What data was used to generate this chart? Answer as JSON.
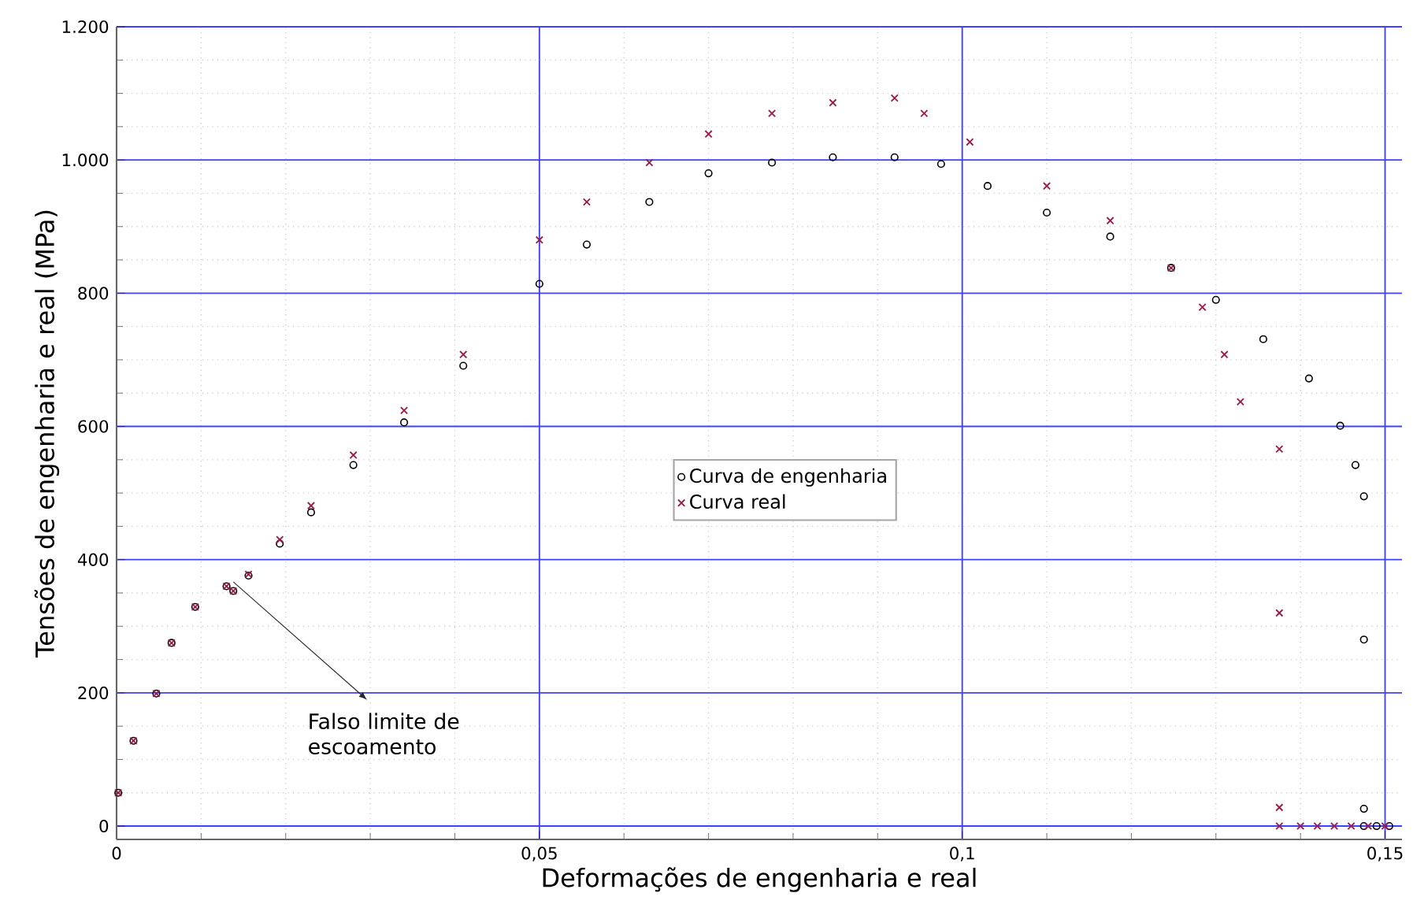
{
  "chart_data": {
    "type": "scatter",
    "xlabel": "Deformações de engenharia e real",
    "ylabel": "Tensões de engenharia e real (MPa)",
    "xlim": [
      0,
      0.152
    ],
    "ylim": [
      -20,
      1200
    ],
    "xticks": [
      0,
      {
        "value": 0.05,
        "label": "0,05"
      },
      {
        "value": 0.1,
        "label": "0,1"
      },
      {
        "value": 0.15,
        "label": "0,15"
      }
    ],
    "yticks": [
      0,
      200,
      400,
      600,
      800,
      {
        "value": 1000,
        "label": "1.000"
      },
      {
        "value": 1200,
        "label": "1.200"
      }
    ],
    "grid": true,
    "legend": "center",
    "annotations": [
      {
        "text": "Falso limite de escoamento",
        "x": 0.0138,
        "y": 353
      }
    ],
    "series": [
      {
        "name": "Curva de engenharia",
        "color": "#000000",
        "marker": "circle",
        "x": [
          0.0002,
          0.002,
          0.0047,
          0.0065,
          0.0093,
          0.013,
          0.0138,
          0.0156,
          0.0193,
          0.023,
          0.028,
          0.034,
          0.041,
          0.05,
          0.0556,
          0.063,
          0.07,
          0.0775,
          0.0847,
          0.092,
          0.0975,
          0.103,
          0.11,
          0.1175,
          0.1247,
          0.13,
          0.1356,
          0.141,
          0.1447,
          0.1465,
          0.1475,
          0.1475,
          0.1475,
          0.1475,
          0.149,
          0.1505
        ],
        "values": [
          50,
          128,
          199,
          275,
          329,
          360,
          353,
          376,
          424,
          471,
          542,
          606,
          691,
          814,
          873,
          937,
          980,
          996,
          1004,
          1004,
          994,
          961,
          921,
          885,
          838,
          790,
          731,
          672,
          601,
          542,
          495,
          280,
          26,
          0,
          0,
          0
        ]
      },
      {
        "name": "Curva real",
        "color": "#9b1b4b",
        "marker": "cross",
        "x": [
          0.0002,
          0.002,
          0.0047,
          0.0065,
          0.0093,
          0.013,
          0.0138,
          0.0156,
          0.0193,
          0.023,
          0.028,
          0.034,
          0.041,
          0.05,
          0.0556,
          0.063,
          0.07,
          0.0775,
          0.0847,
          0.092,
          0.0955,
          0.1009,
          0.11,
          0.1175,
          0.1247,
          0.1284,
          0.131,
          0.1329,
          0.1375,
          0.1375,
          0.1375,
          0.1375,
          0.14,
          0.142,
          0.144,
          0.146,
          0.148,
          0.15
        ],
        "values": [
          50,
          128,
          199,
          275,
          329,
          360,
          353,
          378,
          430,
          481,
          557,
          624,
          708,
          880,
          937,
          996,
          1039,
          1070,
          1086,
          1093,
          1070,
          1027,
          961,
          909,
          838,
          779,
          708,
          637,
          566,
          320,
          28,
          0,
          0,
          0,
          0,
          0,
          0,
          0
        ]
      }
    ]
  }
}
